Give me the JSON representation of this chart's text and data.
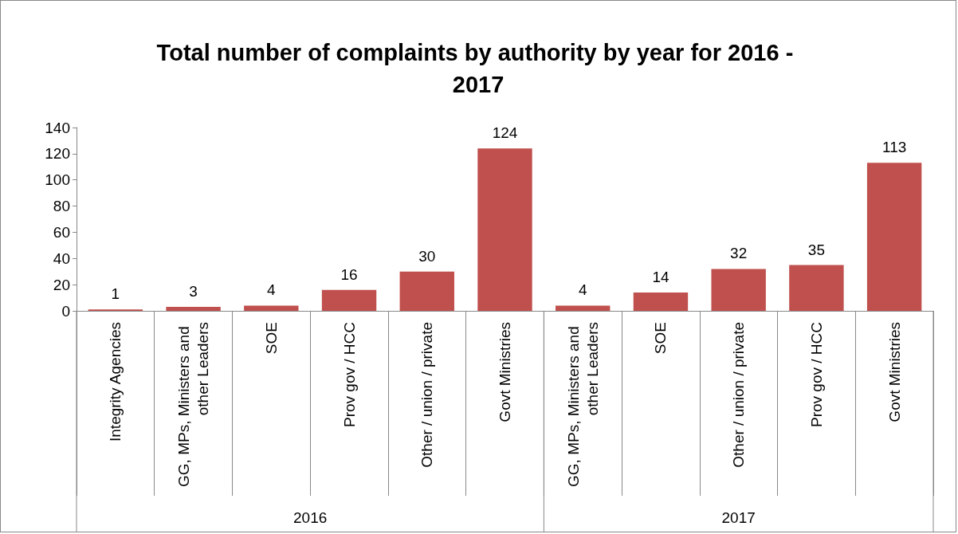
{
  "chart_data": {
    "type": "bar",
    "title": "Total number of complaints by authority by year for 2016 - 2017",
    "categories": [
      "Integrity Agencies",
      "GG, MPs, Ministers and other Leaders",
      "SOE",
      "Prov gov / HCC",
      "Other / union / private",
      "Govt Ministries",
      "GG, MPs, Ministers and other Leaders",
      "SOE",
      "Other / union / private",
      "Prov gov / HCC",
      "Govt Ministries"
    ],
    "values": [
      1,
      3,
      4,
      16,
      30,
      124,
      4,
      14,
      32,
      35,
      113
    ],
    "color": "#c0504d",
    "ylim": [
      0,
      140
    ],
    "yticks": [
      0,
      20,
      40,
      60,
      80,
      100,
      120,
      140
    ],
    "grid": false,
    "data_labels": true,
    "annotations": [
      "2016",
      "2017"
    ]
  }
}
